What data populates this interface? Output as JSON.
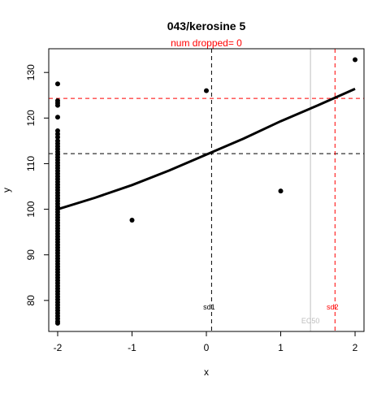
{
  "chart_data": {
    "type": "scatter",
    "title": "043/kerosine 5",
    "subtitle": "num dropped= 0",
    "xlabel": "x",
    "ylabel": "y",
    "xlim": [
      -2.12,
      2.12
    ],
    "ylim": [
      73.2,
      135.2
    ],
    "x_ticks": [
      -2,
      -1,
      0,
      1,
      2
    ],
    "y_ticks": [
      80,
      90,
      100,
      110,
      120,
      130
    ],
    "grid": false,
    "points": {
      "x": [
        -2,
        -2,
        -2,
        -2,
        -2,
        -2,
        -2,
        -2,
        -2,
        -2,
        -2,
        -2,
        -2,
        -2,
        -2,
        -2,
        -2,
        -2,
        -2,
        -2,
        -2,
        -2,
        -2,
        -2,
        -2,
        -2,
        -2,
        -2,
        -2,
        -2,
        -2,
        -2,
        -2,
        -2,
        -2,
        -2,
        -2,
        -2,
        -2,
        -2,
        -2,
        -2,
        -2,
        -2,
        -2,
        -2,
        -2,
        -2,
        -2,
        -2,
        -2,
        -2,
        -2,
        -2,
        -2,
        -2,
        -2,
        -2,
        -2,
        -2,
        -2,
        -2,
        -2,
        -2,
        -2,
        -2,
        -2,
        -2,
        -2,
        -2,
        -2,
        -2,
        -2,
        -2,
        -2,
        -2,
        -1,
        0,
        1,
        2
      ],
      "y": [
        127.5,
        123.8,
        123.3,
        122.8,
        120.2,
        117.2,
        116.5,
        115.8,
        115.0,
        114.4,
        113.8,
        113.2,
        112.6,
        112.0,
        111.4,
        110.8,
        110.2,
        109.6,
        109.0,
        108.4,
        107.8,
        107.2,
        106.6,
        106.0,
        105.4,
        104.8,
        104.2,
        103.6,
        103.0,
        102.4,
        101.8,
        101.2,
        100.6,
        100.0,
        99.4,
        98.8,
        98.2,
        97.6,
        97.0,
        96.4,
        95.8,
        95.2,
        94.6,
        94.0,
        93.4,
        92.8,
        92.2,
        91.6,
        91.0,
        90.4,
        89.8,
        89.2,
        88.6,
        88.0,
        87.4,
        86.8,
        86.2,
        85.6,
        85.0,
        84.4,
        83.8,
        83.2,
        82.6,
        82.0,
        81.4,
        80.8,
        80.2,
        79.6,
        79.0,
        78.4,
        77.8,
        77.2,
        76.6,
        76.0,
        75.4,
        75.0,
        97.6,
        126.0,
        104.0,
        132.8
      ]
    },
    "fit_curve": {
      "x": [
        -2.0,
        -1.5,
        -1.0,
        -0.5,
        0.0,
        0.5,
        1.0,
        1.5,
        2.0
      ],
      "y": [
        100.0,
        102.5,
        105.3,
        108.5,
        112.0,
        115.5,
        119.3,
        122.8,
        126.4
      ]
    },
    "reference_lines": [
      {
        "orientation": "vertical",
        "x": 0.07,
        "style": "dashed",
        "color": "#000000",
        "label": "sd1"
      },
      {
        "orientation": "horizontal",
        "y": 112.2,
        "style": "dashed",
        "color": "#000000"
      },
      {
        "orientation": "vertical",
        "x": 1.73,
        "style": "dashed",
        "color": "#ff0000",
        "label": "sd2"
      },
      {
        "orientation": "horizontal",
        "y": 124.3,
        "style": "dashed",
        "color": "#ff0000"
      },
      {
        "orientation": "vertical",
        "x": 1.4,
        "style": "solid",
        "color": "#bebebe",
        "label": "EC50"
      }
    ]
  }
}
